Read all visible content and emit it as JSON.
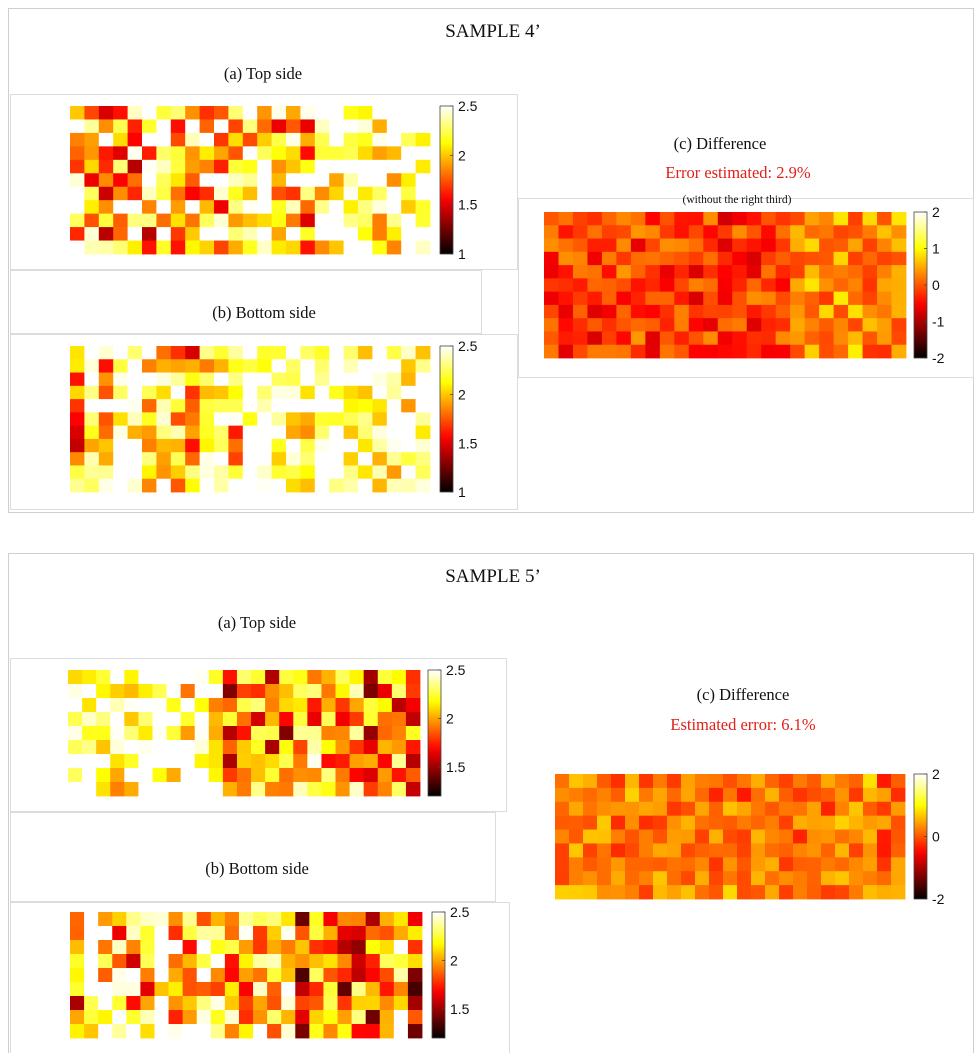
{
  "figure_4": {
    "title": "SAMPLE 4’",
    "top_label": "(a) Top side",
    "bottom_label": "(b) Bottom side",
    "diff_label": "(c) Difference",
    "diff_error": "Error estimated: 2.9%",
    "diff_note": "(without the right third)"
  },
  "figure_5": {
    "title": "SAMPLE 5’",
    "top_label": "(a) Top side",
    "bottom_label": "(b) Bottom side",
    "diff_label": "(c) Difference",
    "diff_error": "Estimated error: 6.1%"
  },
  "colormap": "hot",
  "chart_data": [
    {
      "id": "s4-top",
      "type": "heatmap",
      "title": "(a) Top side",
      "rows": 11,
      "cols": 25,
      "clim": [
        1,
        2.5
      ],
      "colorbar_ticks": [
        1,
        1.5,
        2,
        2.5
      ],
      "regions": [
        [
          0,
          0.25
        ],
        [
          0.7,
          0.58
        ]
      ],
      "base": 1.82,
      "spread": 0.62,
      "stripe": 0.1,
      "seed": 11
    },
    {
      "id": "s4-bottom",
      "type": "heatmap",
      "title": "(b) Bottom side",
      "rows": 11,
      "cols": 25,
      "clim": [
        1,
        2.5
      ],
      "colorbar_ticks": [
        1,
        1.5,
        2,
        2.5
      ],
      "regions": [
        [
          0,
          0.15
        ],
        [
          0.5,
          0.45
        ]
      ],
      "base": 1.98,
      "spread": 0.5,
      "stripe": 0.32,
      "seed": 23
    },
    {
      "id": "s4-diff",
      "type": "heatmap",
      "title": "(c) Difference",
      "rows": 11,
      "cols": 25,
      "clim": [
        -2,
        2
      ],
      "colorbar_ticks": [
        -2,
        -1,
        0,
        1,
        2
      ],
      "regions": [
        [
          0,
          -0.15
        ],
        [
          0.7,
          0.35
        ]
      ],
      "base": -0.05,
      "spread": 0.55,
      "stripe": 0.08,
      "seed": 37
    },
    {
      "id": "s5-top",
      "type": "heatmap",
      "title": "(a) Top side",
      "rows": 9,
      "cols": 25,
      "clim": [
        1.2,
        2.5
      ],
      "colorbar_ticks": [
        1.5,
        2,
        2.5
      ],
      "regions": [
        [
          0,
          0.35
        ],
        [
          0.45,
          -0.1
        ]
      ],
      "base": 2.05,
      "spread": 0.45,
      "stripe": 0.12,
      "seed": 41
    },
    {
      "id": "s5-bottom",
      "type": "heatmap",
      "title": "(b) Bottom side",
      "rows": 9,
      "cols": 25,
      "clim": [
        1.2,
        2.5
      ],
      "colorbar_ticks": [
        1.5,
        2,
        2.5
      ],
      "regions": [
        [
          0,
          0.2
        ],
        [
          0.55,
          -0.05
        ]
      ],
      "base": 1.98,
      "spread": 0.5,
      "stripe": 0.3,
      "seed": 53
    },
    {
      "id": "s5-diff",
      "type": "heatmap",
      "title": "(c) Difference",
      "rows": 9,
      "cols": 25,
      "clim": [
        -2,
        2
      ],
      "colorbar_ticks": [
        -2,
        0,
        2
      ],
      "regions": [
        [
          0,
          0.15
        ]
      ],
      "base": 0.05,
      "spread": 0.45,
      "stripe": 0.2,
      "seed": 67
    }
  ]
}
